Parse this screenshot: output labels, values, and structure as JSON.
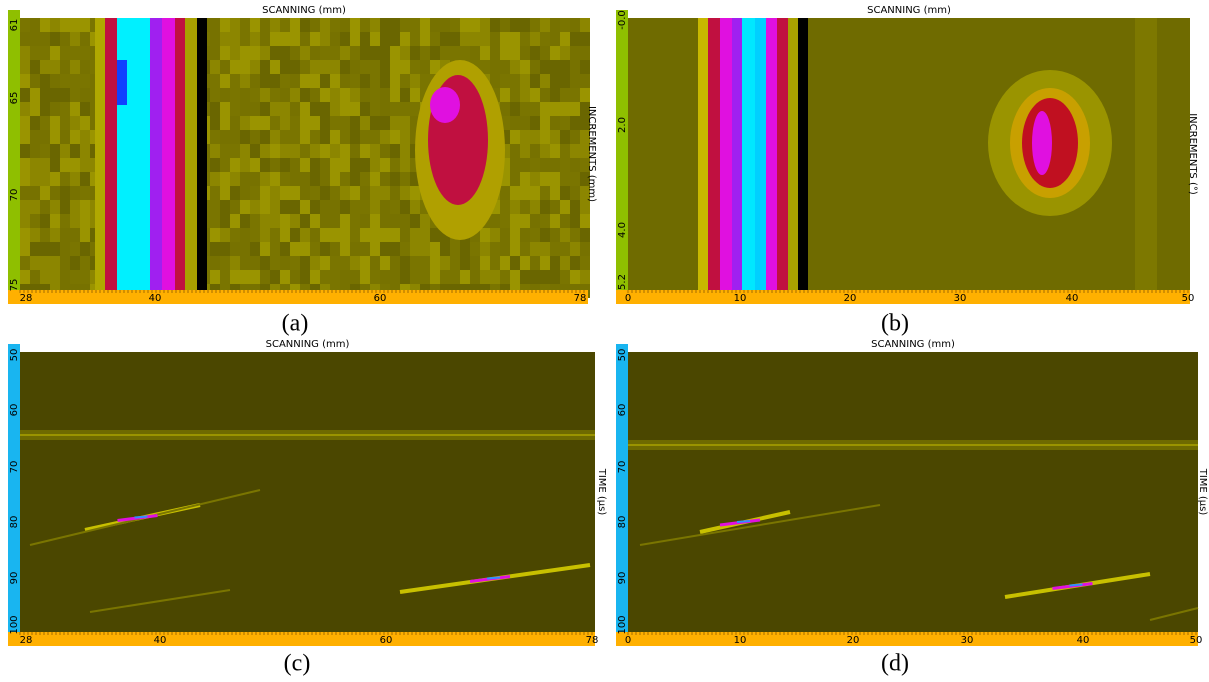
{
  "panels": [
    {
      "caption": "(a)",
      "top_label": "SCANNING (mm)",
      "side_label": "INCREMENTS (mm)",
      "y_ticks": [
        "61",
        "65",
        "70",
        "75"
      ],
      "x_ticks": [
        "28",
        "40",
        "60",
        "78"
      ]
    },
    {
      "caption": "(b)",
      "top_label": "SCANNING (mm)",
      "side_label": "INCREMENTS (°)",
      "y_ticks": [
        "-0.0",
        "2.0",
        "4.0",
        "5.2"
      ],
      "x_ticks": [
        "0",
        "10",
        "20",
        "30",
        "40",
        "50"
      ]
    },
    {
      "caption": "(c)",
      "top_label": "SCANNING (mm)",
      "side_label": "TIME (µs)",
      "y_ticks": [
        "50",
        "60",
        "70",
        "80",
        "90",
        "100"
      ],
      "x_ticks": [
        "28",
        "40",
        "60",
        "78"
      ]
    },
    {
      "caption": "(d)",
      "top_label": "SCANNING (mm)",
      "side_label": "TIME (µs)",
      "y_ticks": [
        "50",
        "60",
        "70",
        "80",
        "90",
        "100"
      ],
      "x_ticks": [
        "0",
        "10",
        "20",
        "30",
        "40",
        "50"
      ]
    }
  ]
}
